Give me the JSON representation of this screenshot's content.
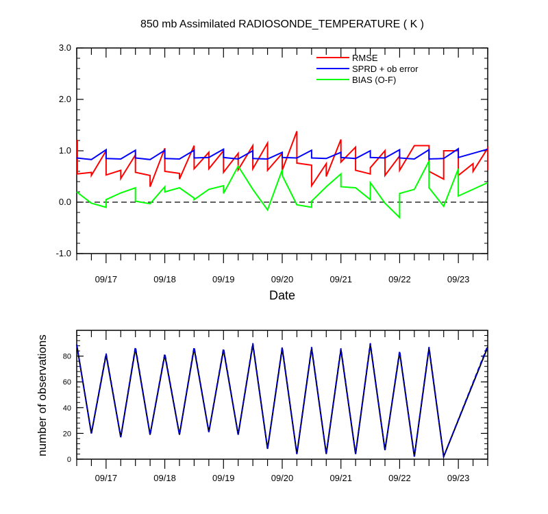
{
  "chart_data": [
    {
      "type": "line",
      "title": "850 mb Assimilated RADIOSONDE_TEMPERATURE ( K )",
      "xlabel": "Date",
      "ylabel": "",
      "xlim": [
        0,
        7.0
      ],
      "ylim": [
        -1.0,
        3.0
      ],
      "ytick_labels": [
        "3.0",
        "2.0",
        "1.0",
        "0.0",
        "-1.0"
      ],
      "ytick_values": [
        3.0,
        2.0,
        1.0,
        0.0,
        -1.0
      ],
      "xtick_labels": [
        "09/17",
        "09/18",
        "09/19",
        "09/20",
        "09/21",
        "09/22",
        "09/23"
      ],
      "legend": {
        "placement": "top-right",
        "entries": [
          "RMSE",
          "SPRD + ob error",
          "BIAS (O-F)"
        ]
      },
      "zero_line": true,
      "series": [
        {
          "name": "RMSE",
          "color": "#ff0000",
          "x": [
            0.0,
            0.01,
            0.01,
            0.25,
            0.25,
            0.5,
            0.5,
            0.75,
            0.75,
            1.0,
            1.0,
            1.25,
            1.25,
            1.5,
            1.5,
            1.75,
            1.75,
            2.0,
            2.0,
            2.25,
            2.25,
            2.5,
            2.5,
            2.75,
            2.75,
            3.0,
            3.0,
            3.25,
            3.25,
            3.5,
            3.5,
            3.75,
            3.75,
            4.0,
            4.0,
            4.25,
            4.25,
            4.5,
            4.5,
            4.75,
            4.75,
            5.0,
            5.0,
            5.25,
            5.25,
            5.5,
            5.5,
            5.75,
            5.75,
            6.0,
            6.0,
            6.25,
            6.25,
            6.5,
            6.5,
            6.75,
            6.75,
            7.0,
            7.0
          ],
          "y": [
            1.2,
            1.2,
            0.55,
            0.58,
            0.52,
            1.0,
            0.53,
            0.62,
            0.46,
            0.92,
            0.58,
            0.52,
            0.3,
            1.05,
            0.6,
            0.56,
            0.45,
            1.1,
            0.65,
            0.97,
            0.65,
            1.0,
            0.58,
            0.95,
            0.63,
            1.1,
            0.65,
            1.15,
            0.62,
            0.95,
            0.62,
            1.38,
            0.76,
            0.72,
            0.32,
            0.75,
            0.5,
            1.22,
            0.78,
            1.07,
            0.62,
            0.55,
            0.67,
            1.0,
            0.52,
            0.9,
            0.62,
            1.1,
            1.1,
            1.1,
            0.6,
            0.45,
            1.0,
            1.0,
            0.52,
            0.75,
            0.6,
            1.05,
            0.62
          ]
        },
        {
          "name": "SPRD + ob error",
          "color": "#0000ff",
          "x": [
            0.0,
            0.25,
            0.5,
            0.5,
            0.75,
            1.0,
            1.0,
            1.25,
            1.5,
            1.5,
            1.75,
            2.0,
            2.0,
            2.25,
            2.5,
            2.5,
            2.75,
            3.0,
            3.0,
            3.25,
            3.5,
            3.5,
            3.75,
            4.0,
            4.0,
            4.25,
            4.5,
            4.5,
            4.75,
            5.0,
            5.0,
            5.25,
            5.5,
            5.5,
            5.75,
            6.0,
            6.0,
            6.25,
            6.5,
            6.5,
            7.0
          ],
          "y": [
            0.86,
            0.83,
            1.02,
            0.85,
            0.84,
            1.01,
            0.86,
            0.83,
            1.01,
            0.85,
            0.84,
            1.01,
            0.86,
            0.87,
            1.03,
            0.87,
            0.84,
            1.0,
            0.85,
            0.84,
            0.97,
            0.87,
            0.86,
            1.01,
            0.86,
            0.85,
            0.97,
            0.87,
            0.85,
            1.0,
            0.87,
            0.86,
            1.02,
            0.86,
            0.84,
            1.02,
            0.84,
            0.85,
            1.04,
            0.87,
            1.03
          ]
        },
        {
          "name": "BIAS (O-F)",
          "color": "#00ff00",
          "x": [
            0.0,
            0.25,
            0.5,
            0.5,
            0.75,
            1.0,
            1.0,
            1.25,
            1.5,
            1.5,
            1.75,
            2.0,
            2.0,
            2.25,
            2.5,
            2.5,
            2.75,
            3.0,
            3.0,
            3.25,
            3.5,
            3.5,
            3.75,
            4.0,
            4.0,
            4.25,
            4.5,
            4.5,
            4.75,
            5.0,
            5.0,
            5.25,
            5.5,
            5.5,
            5.75,
            6.0,
            6.0,
            6.25,
            6.5,
            6.5,
            7.0
          ],
          "y": [
            0.2,
            -0.02,
            -0.1,
            0.05,
            0.18,
            0.28,
            0.02,
            -0.03,
            0.3,
            0.2,
            0.28,
            0.08,
            0.05,
            0.25,
            0.32,
            0.17,
            0.7,
            0.25,
            0.25,
            -0.15,
            0.63,
            0.52,
            -0.05,
            -0.1,
            0.02,
            0.3,
            0.55,
            0.3,
            0.28,
            0.05,
            0.38,
            -0.02,
            -0.3,
            0.17,
            0.25,
            0.8,
            0.28,
            -0.08,
            0.65,
            0.12,
            0.38
          ]
        }
      ]
    },
    {
      "type": "line",
      "title": "",
      "xlabel": "",
      "ylabel": "number of observations",
      "xlim": [
        0,
        7.0
      ],
      "ylim": [
        0,
        100
      ],
      "ytick_labels": [
        "80",
        "60",
        "40",
        "20",
        "0"
      ],
      "ytick_values": [
        80,
        60,
        40,
        20,
        0
      ],
      "xtick_labels": [
        "09/17",
        "09/18",
        "09/19",
        "09/20",
        "09/21",
        "09/22",
        "09/23"
      ],
      "series": [
        {
          "color": "#000000",
          "dash": "solid",
          "x": [
            0.0,
            0.25,
            0.5,
            0.75,
            1.0,
            1.25,
            1.5,
            1.75,
            2.0,
            2.25,
            2.5,
            2.75,
            3.0,
            3.25,
            3.5,
            3.75,
            4.0,
            4.25,
            4.5,
            4.75,
            5.0,
            5.25,
            5.5,
            5.75,
            6.0,
            6.25,
            7.0
          ],
          "y": [
            89,
            20,
            81,
            17,
            86,
            19,
            81,
            19,
            86,
            21,
            85,
            19,
            89,
            8,
            86,
            4,
            86,
            4,
            85,
            4,
            89,
            7,
            83,
            2,
            86,
            2,
            87
          ]
        },
        {
          "color": "#0000cd",
          "dash": "dashed",
          "x": [
            0.0,
            0.25,
            0.5,
            0.75,
            1.0,
            1.25,
            1.5,
            1.75,
            2.0,
            2.25,
            2.5,
            2.75,
            3.0,
            3.25,
            3.5,
            3.75,
            4.0,
            4.25,
            4.5,
            4.75,
            5.0,
            5.25,
            5.5,
            5.75,
            6.0,
            6.25,
            7.0
          ],
          "y": [
            89,
            20,
            82,
            17,
            87,
            19,
            82,
            19,
            87,
            21,
            86,
            19,
            90,
            8,
            87,
            4,
            87,
            4,
            86,
            4,
            90,
            7,
            84,
            2,
            87,
            2,
            88
          ]
        }
      ]
    }
  ]
}
